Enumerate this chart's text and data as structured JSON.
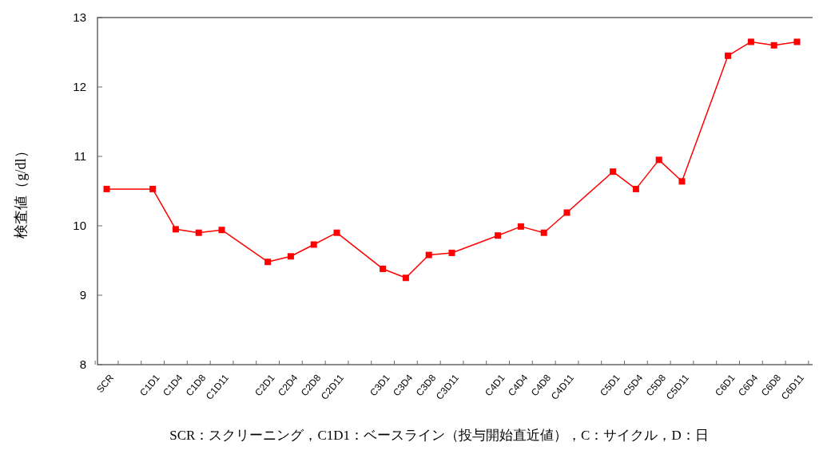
{
  "chart_data": {
    "type": "line",
    "ylabel": "検査値（g/dl）",
    "categories": [
      "SCR",
      null,
      "C1D1",
      "C1D4",
      "C1D8",
      "C1D11",
      null,
      "C2D1",
      "C2D4",
      "C2D8",
      "C2D11",
      null,
      "C3D1",
      "C3D4",
      "C3D8",
      "C3D11",
      null,
      "C4D1",
      "C4D4",
      "C4D8",
      "C4D11",
      null,
      "C5D1",
      "C5D4",
      "C5D8",
      "C5D11",
      null,
      "C6D1",
      "C6D4",
      "C6D8",
      "C6D11"
    ],
    "series": [
      {
        "color": "#ff0000",
        "values": [
          10.53,
          null,
          10.53,
          9.95,
          9.9,
          9.94,
          null,
          9.48,
          9.56,
          9.73,
          9.9,
          null,
          9.38,
          9.25,
          9.58,
          9.61,
          null,
          9.86,
          9.99,
          9.9,
          10.19,
          null,
          10.78,
          10.53,
          10.95,
          10.64,
          null,
          12.45,
          12.65,
          12.6,
          12.65
        ]
      }
    ],
    "ylim": [
      8,
      13
    ],
    "yticks": [
      8,
      9,
      10,
      11,
      12,
      13
    ],
    "grid": false,
    "marker": "square",
    "line_style": "solid",
    "annotations": [
      "SCR：スクリーニング，C1D1：ベースライン（投与開始直近値），C：サイクル，D：日"
    ]
  }
}
